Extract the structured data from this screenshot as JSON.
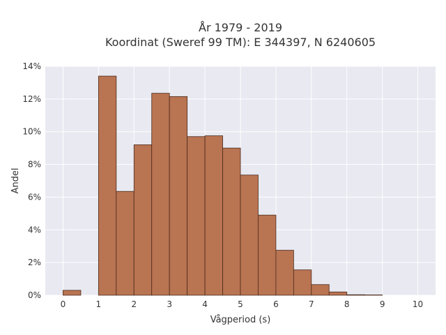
{
  "chart_data": {
    "type": "bar",
    "title_line1": "År 1979 - 2019",
    "title_line2": "Koordinat (Sweref 99 TM): E 344397, N 6240605",
    "xlabel": "Vågperiod (s)",
    "ylabel": "Andel",
    "bin_width": 0.5,
    "bins": [
      {
        "start": 0.0,
        "value": 0.3
      },
      {
        "start": 0.5,
        "value": 0.0
      },
      {
        "start": 1.0,
        "value": 13.4
      },
      {
        "start": 1.5,
        "value": 6.35
      },
      {
        "start": 2.0,
        "value": 9.2
      },
      {
        "start": 2.5,
        "value": 12.35
      },
      {
        "start": 3.0,
        "value": 12.15
      },
      {
        "start": 3.5,
        "value": 9.7
      },
      {
        "start": 4.0,
        "value": 9.75
      },
      {
        "start": 4.5,
        "value": 9.0
      },
      {
        "start": 5.0,
        "value": 7.35
      },
      {
        "start": 5.5,
        "value": 4.9
      },
      {
        "start": 6.0,
        "value": 2.75
      },
      {
        "start": 6.5,
        "value": 1.55
      },
      {
        "start": 7.0,
        "value": 0.65
      },
      {
        "start": 7.5,
        "value": 0.2
      },
      {
        "start": 8.0,
        "value": 0.03
      },
      {
        "start": 8.5,
        "value": 0.02
      }
    ],
    "xlim": [
      -0.5,
      10.5
    ],
    "ylim": [
      0,
      14
    ],
    "x_ticks": [
      {
        "value": 0,
        "label": "0"
      },
      {
        "value": 1,
        "label": "1"
      },
      {
        "value": 2,
        "label": "2"
      },
      {
        "value": 3,
        "label": "3"
      },
      {
        "value": 4,
        "label": "4"
      },
      {
        "value": 5,
        "label": "5"
      },
      {
        "value": 6,
        "label": "6"
      },
      {
        "value": 7,
        "label": "7"
      },
      {
        "value": 8,
        "label": "8"
      },
      {
        "value": 9,
        "label": "9"
      },
      {
        "value": 10,
        "label": "10"
      }
    ],
    "y_ticks": [
      {
        "value": 0,
        "label": "0%"
      },
      {
        "value": 2,
        "label": "2%"
      },
      {
        "value": 4,
        "label": "4%"
      },
      {
        "value": 6,
        "label": "6%"
      },
      {
        "value": 8,
        "label": "8%"
      },
      {
        "value": 10,
        "label": "10%"
      },
      {
        "value": 12,
        "label": "12%"
      },
      {
        "value": 14,
        "label": "14%"
      }
    ],
    "grid": true,
    "colors": {
      "bar_fill": "#b97452",
      "bar_stroke": "#4a2a1a",
      "plot_bg": "#e8e9f1",
      "grid": "#ffffff"
    }
  }
}
